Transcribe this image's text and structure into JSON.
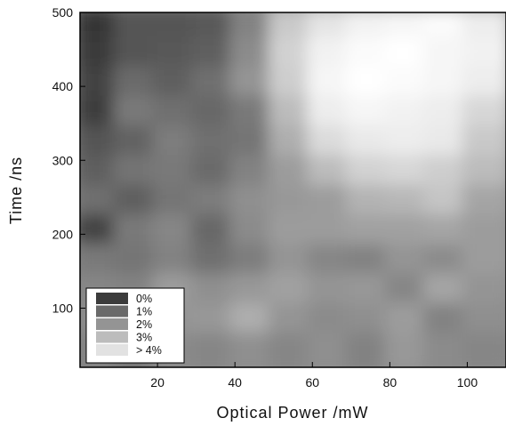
{
  "chart_data": {
    "type": "heatmap",
    "title": "",
    "xlabel": "Optical Power /mW",
    "ylabel": "Time /ns",
    "xlim": [
      0,
      110
    ],
    "ylim": [
      20,
      500
    ],
    "xticks": [
      20,
      40,
      60,
      80,
      100
    ],
    "yticks": [
      100,
      200,
      300,
      400,
      500
    ],
    "xtick_labels": [
      "20",
      "40",
      "60",
      "80",
      "100"
    ],
    "ytick_labels": [
      "100",
      "200",
      "300",
      "400",
      "500"
    ],
    "grid": false,
    "legend_position": "bottom-left",
    "legend": [
      {
        "label": "0%",
        "color": "#3c3c3c"
      },
      {
        "label": "1%",
        "color": "#6a6a6a"
      },
      {
        "label": "2%",
        "color": "#949494"
      },
      {
        "label": "3%",
        "color": "#bcbcbc"
      },
      {
        "label": "> 4%",
        "color": "#e2e2e2"
      }
    ],
    "x": [
      5,
      15,
      25,
      35,
      45,
      55,
      65,
      75,
      85,
      95,
      105
    ],
    "y": [
      480,
      440,
      400,
      360,
      320,
      280,
      240,
      200,
      160,
      120,
      80,
      40
    ],
    "z": [
      [
        0.3,
        1.0,
        1.0,
        1.1,
        2.0,
        3.6,
        4.2,
        4.5,
        4.6,
        4.7,
        4.4
      ],
      [
        0.4,
        1.0,
        1.1,
        1.2,
        2.2,
        3.8,
        4.5,
        4.7,
        4.8,
        4.6,
        4.5
      ],
      [
        0.6,
        1.5,
        1.2,
        1.6,
        2.4,
        3.7,
        4.6,
        4.8,
        4.7,
        4.6,
        4.4
      ],
      [
        0.5,
        1.8,
        1.6,
        1.4,
        1.8,
        3.3,
        4.4,
        4.6,
        4.5,
        4.4,
        3.9
      ],
      [
        1.0,
        1.3,
        1.9,
        1.6,
        1.7,
        3.0,
        4.0,
        4.3,
        4.4,
        4.3,
        3.6
      ],
      [
        1.2,
        1.7,
        1.8,
        1.5,
        2.0,
        2.6,
        3.3,
        3.8,
        3.9,
        3.7,
        3.3
      ],
      [
        1.6,
        1.2,
        1.7,
        1.9,
        2.3,
        2.5,
        2.6,
        3.1,
        3.2,
        3.5,
        2.8
      ],
      [
        0.6,
        1.8,
        2.1,
        1.4,
        2.2,
        2.6,
        2.6,
        2.7,
        2.7,
        2.8,
        2.6
      ],
      [
        1.8,
        1.7,
        2.0,
        1.6,
        1.9,
        2.4,
        2.1,
        2.0,
        2.4,
        2.2,
        2.6
      ],
      [
        2.1,
        2.0,
        2.6,
        2.3,
        2.5,
        2.7,
        2.4,
        2.5,
        2.1,
        2.8,
        2.4
      ],
      [
        2.2,
        2.3,
        2.4,
        2.5,
        3.0,
        2.4,
        2.2,
        2.3,
        2.6,
        2.0,
        2.3
      ],
      [
        2.0,
        1.7,
        2.2,
        2.1,
        2.3,
        2.1,
        2.3,
        2.0,
        2.5,
        2.2,
        2.1
      ]
    ]
  }
}
